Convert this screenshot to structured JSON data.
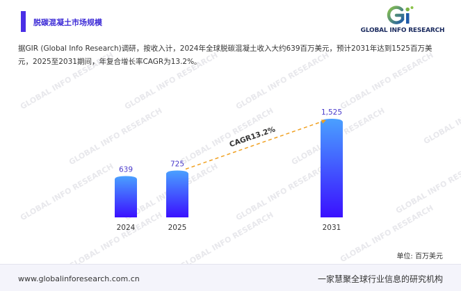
{
  "header": {
    "title": "脱碳混凝土市场规模",
    "logo_text": "GLOBAL INFO RESEARCH",
    "logo_mark_letters": "Gi",
    "accent_color": "#4a2fe6"
  },
  "description": "据GIR (Global Info Research)调研，按收入计，2024年全球脱碳混凝土收入大约639百万美元，预计2031年达到1525百万美元，2025至2031期间，年复合增长率CAGR为13.2%。",
  "watermark_text": "GLOBAL INFO RESEARCH",
  "chart_data": {
    "type": "bar",
    "categories": [
      "2024",
      "2025",
      "2031"
    ],
    "values": [
      639,
      725,
      1525
    ],
    "value_labels": [
      "639",
      "725",
      "1,525"
    ],
    "unit_label": "单位: 百万美元",
    "annotation": {
      "text": "CAGR13.2%",
      "from": "2025",
      "to": "2031",
      "style": "dashed-arrow",
      "color": "#f0a020"
    },
    "bar_gradient": [
      "#4aa0ff",
      "#3a10ff"
    ],
    "value_label_color": "#4a3acb",
    "ylim": [
      0,
      1525
    ],
    "grid": false
  },
  "footer": {
    "website": "www.globalinforesearch.com.cn",
    "slogan": "一家慧聚全球行业信息的研究机构"
  }
}
